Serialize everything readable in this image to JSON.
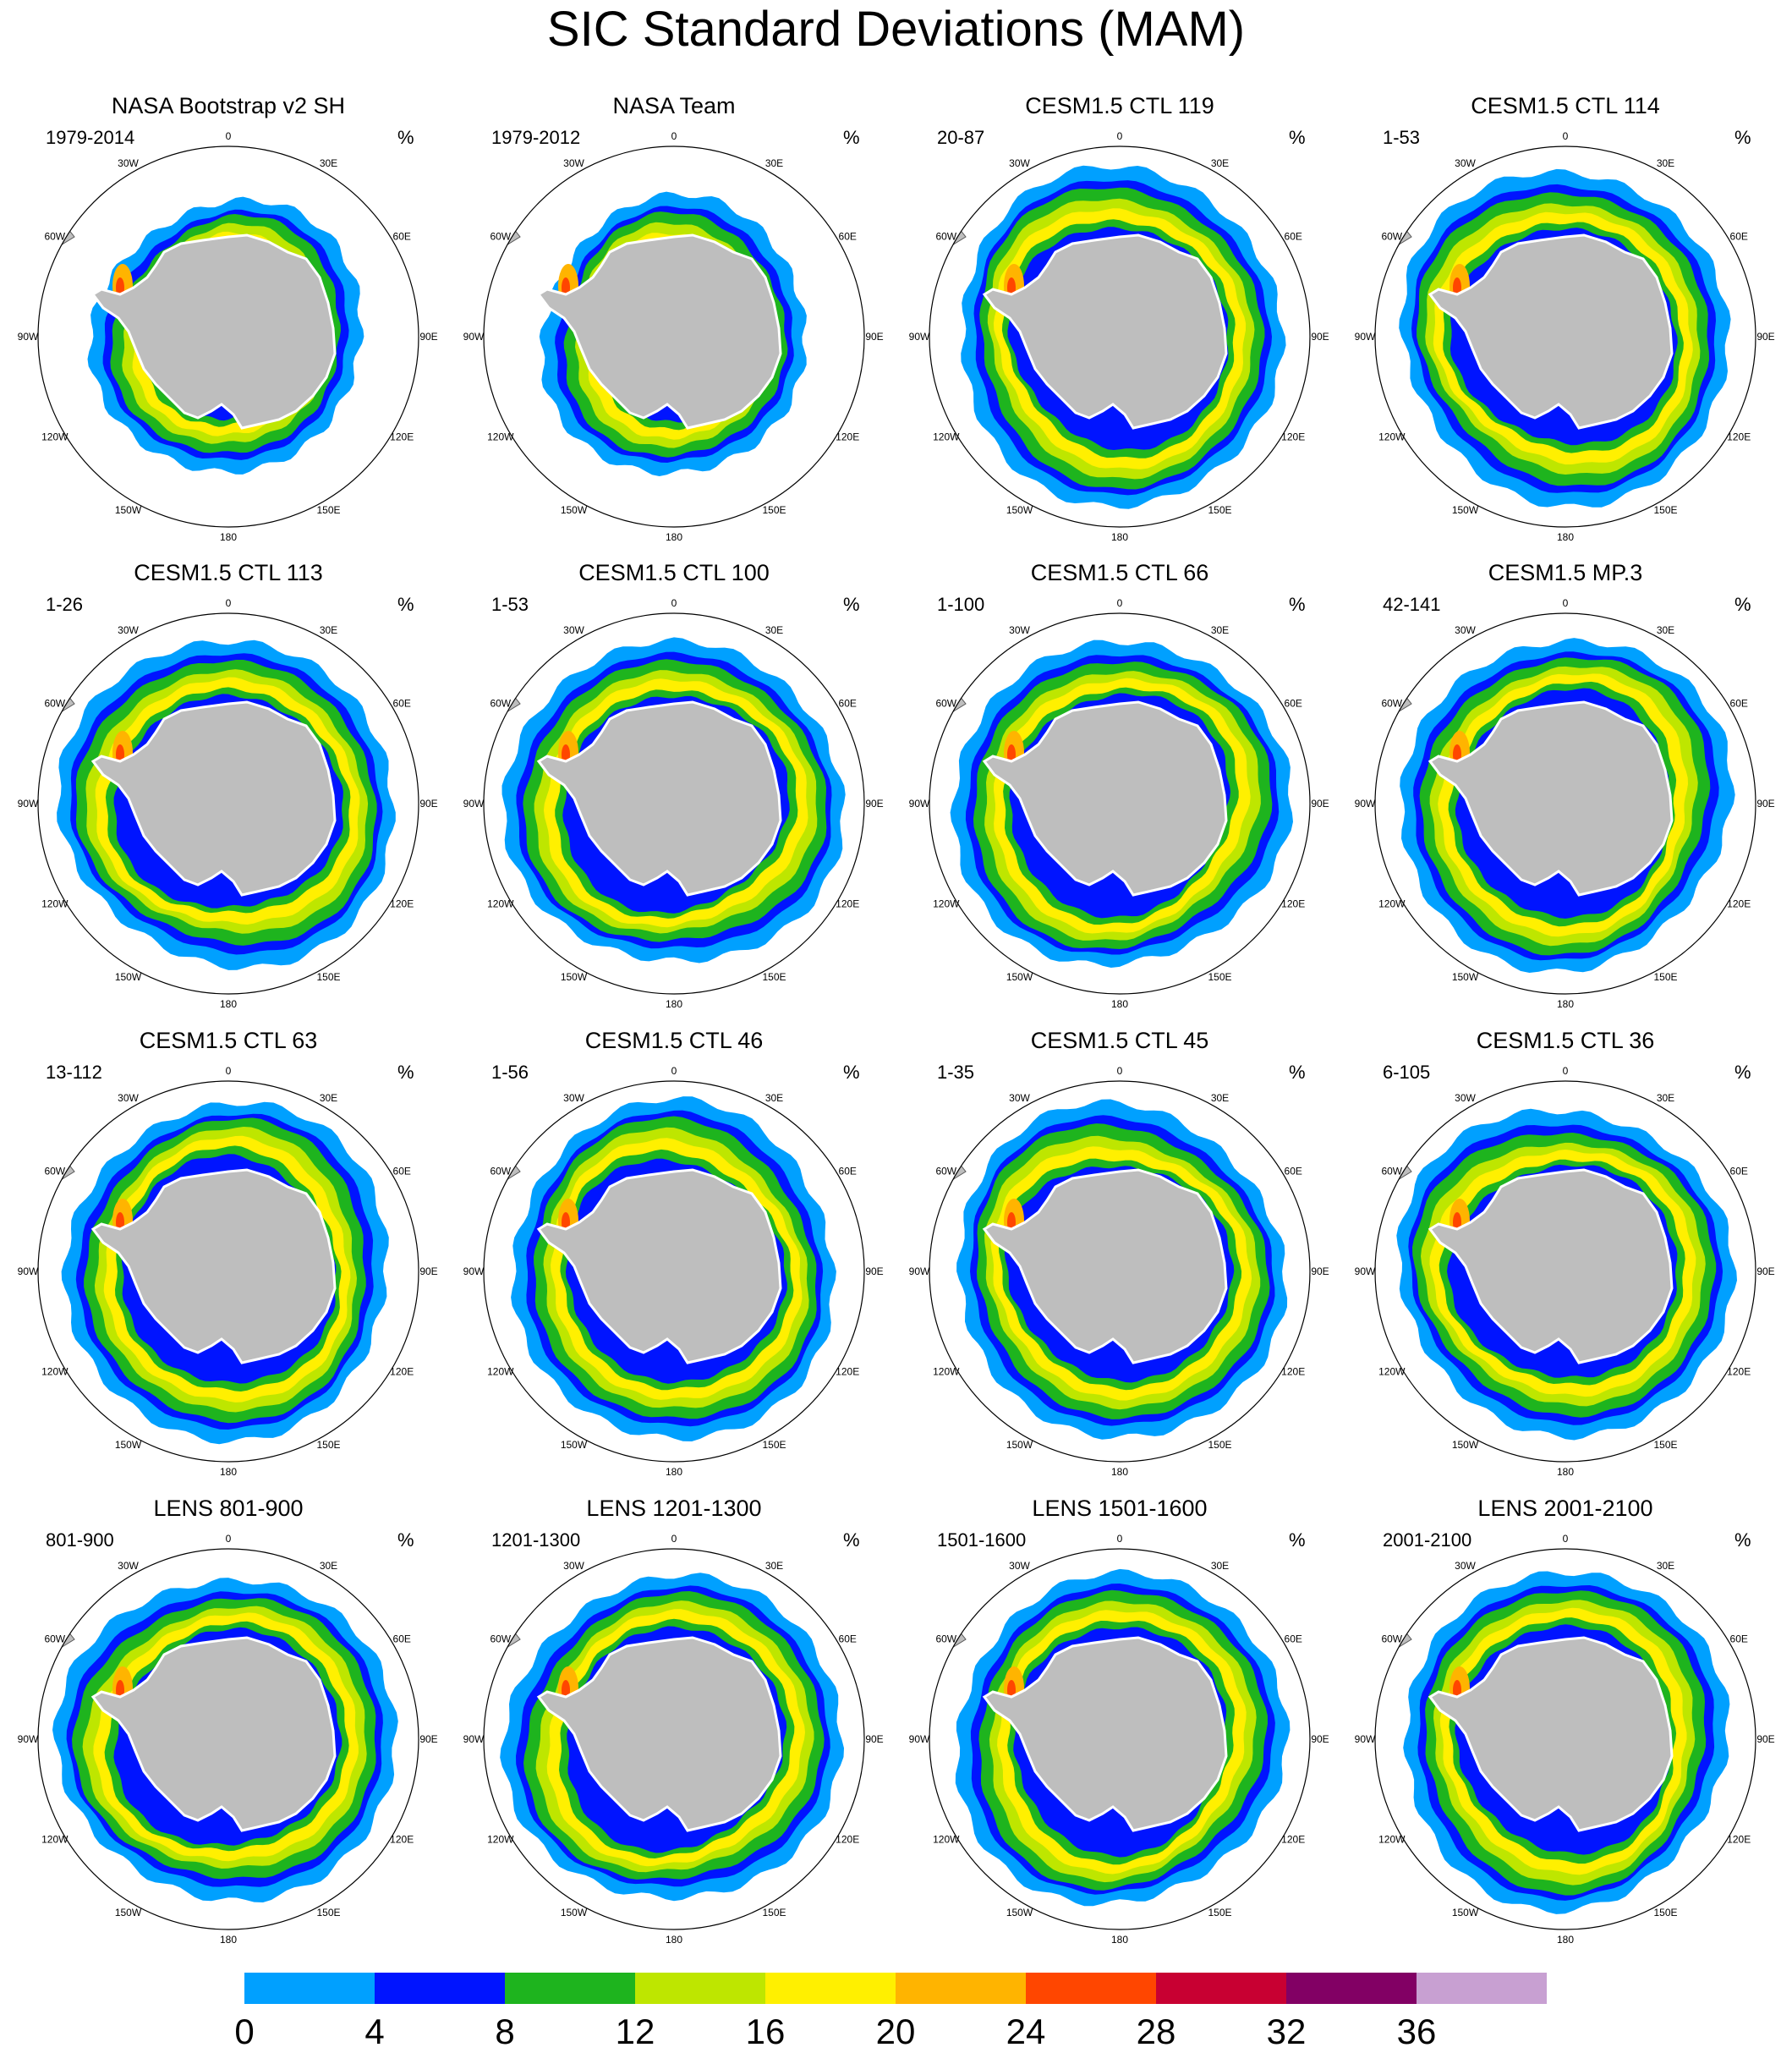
{
  "title": "SIC Standard Deviations (MAM)",
  "unit": "%",
  "lon_labels": [
    "0",
    "30E",
    "60E",
    "90E",
    "120E",
    "150E",
    "180",
    "150W",
    "120W",
    "90W",
    "60W",
    "30W"
  ],
  "panels": [
    {
      "title": "NASA Bootstrap v2 SH",
      "period": "1979-2014"
    },
    {
      "title": "NASA Team",
      "period": "1979-2012"
    },
    {
      "title": "CESM1.5 CTL 119",
      "period": "20-87"
    },
    {
      "title": "CESM1.5 CTL 114",
      "period": "1-53"
    },
    {
      "title": "CESM1.5 CTL 113",
      "period": "1-26"
    },
    {
      "title": "CESM1.5 CTL 100",
      "period": "1-53"
    },
    {
      "title": "CESM1.5 CTL 66",
      "period": "1-100"
    },
    {
      "title": "CESM1.5 MP.3",
      "period": "42-141"
    },
    {
      "title": "CESM1.5 CTL 63",
      "period": "13-112"
    },
    {
      "title": "CESM1.5 CTL 46",
      "period": "1-56"
    },
    {
      "title": "CESM1.5 CTL 45",
      "period": "1-35"
    },
    {
      "title": "CESM1.5 CTL 36",
      "period": "6-105"
    },
    {
      "title": "LENS 801-900",
      "period": "801-900"
    },
    {
      "title": "LENS 1201-1300",
      "period": "1201-1300"
    },
    {
      "title": "LENS 1501-1600",
      "period": "1501-1600"
    },
    {
      "title": "LENS 2001-2100",
      "period": "2001-2100"
    }
  ],
  "colorbar": {
    "labels": [
      "0",
      "4",
      "8",
      "12",
      "16",
      "20",
      "24",
      "28",
      "32",
      "36"
    ],
    "colors": [
      "#00a0ff",
      "#0014ff",
      "#1eb41e",
      "#bee600",
      "#fff000",
      "#ffb400",
      "#ff4600",
      "#c80032",
      "#820064",
      "#c8a0d2"
    ]
  },
  "colors": {
    "land": "#bebebe",
    "ocean": "#ffffff",
    "frame": "#000000"
  }
}
